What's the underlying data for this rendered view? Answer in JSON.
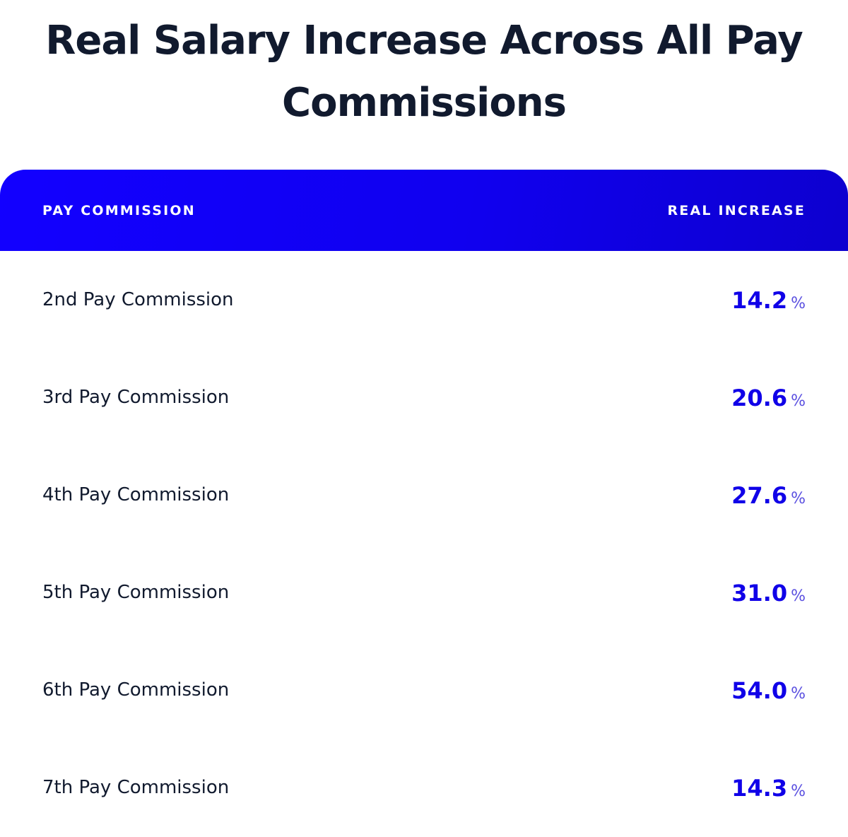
{
  "title": "Real Salary Increase Across All Pay Commissions",
  "table": {
    "header_label": "PAY COMMISSION",
    "header_value": "REAL INCREASE"
  },
  "colors": {
    "header_gradient_start": "#1200ff",
    "header_gradient_end": "#0d00cf",
    "value_text": "#1000e8",
    "body_text": "#111a2e"
  },
  "chart_data": {
    "type": "table",
    "title": "Real Salary Increase Across All Pay Commissions",
    "columns": [
      "PAY COMMISSION",
      "REAL INCREASE"
    ],
    "unit": "%",
    "categories": [
      "2nd Pay Commission",
      "3rd Pay Commission",
      "4th Pay Commission",
      "5th Pay Commission",
      "6th Pay Commission",
      "7th Pay Commission"
    ],
    "values": [
      "14.2",
      "20.6",
      "27.6",
      "31.0",
      "54.0",
      "14.3"
    ]
  }
}
